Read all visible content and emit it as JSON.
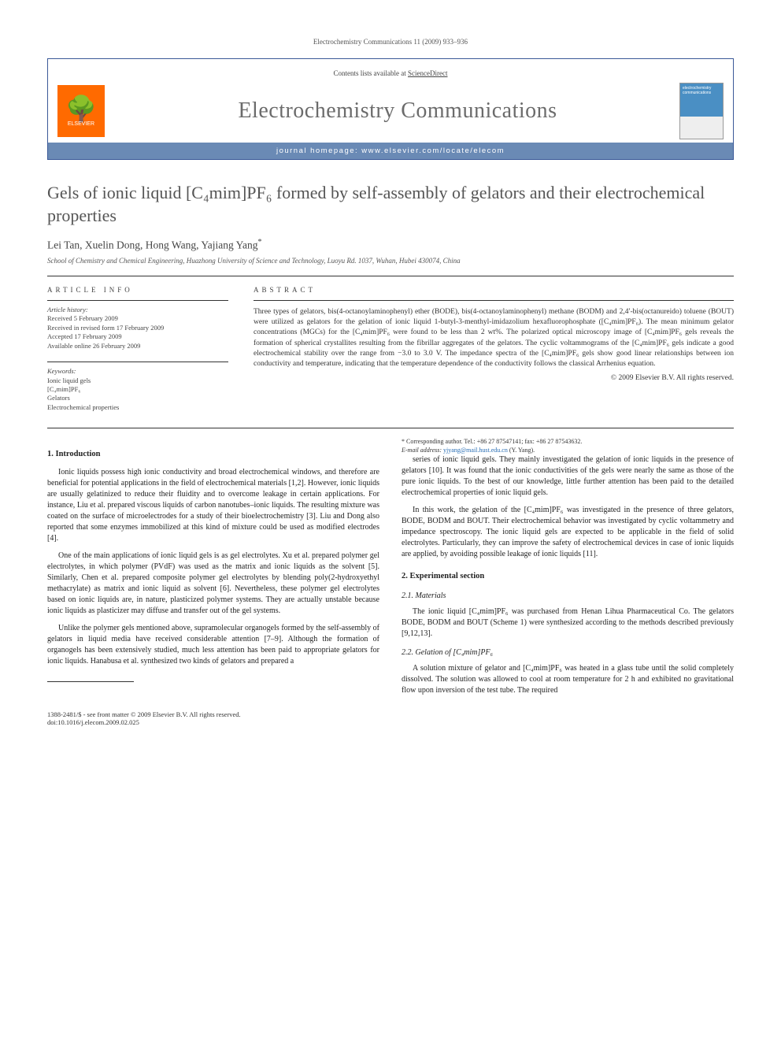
{
  "header_citation": "Electrochemistry Communications 11 (2009) 933–936",
  "banner": {
    "contents_line_prefix": "Contents lists available at ",
    "contents_link": "ScienceDirect",
    "journal_name": "Electrochemistry Communications",
    "homepage_label": "journal homepage: ",
    "homepage_url": "www.elsevier.com/locate/elecom",
    "publisher_logo_label": "ELSEVIER",
    "cover_text": "electrochemistry communications"
  },
  "title": "Gels of ionic liquid [C₄mim]PF₆ formed by self-assembly of gelators and their electrochemical properties",
  "authors": "Lei Tan, Xuelin Dong, Hong Wang, Yajiang Yang",
  "corr_mark": "*",
  "affiliation": "School of Chemistry and Chemical Engineering, Huazhong University of Science and Technology, Luoyu Rd. 1037, Wuhan, Hubei 430074, China",
  "article_info": {
    "heading": "ARTICLE INFO",
    "history_label": "Article history:",
    "received": "Received 5 February 2009",
    "revised": "Received in revised form 17 February 2009",
    "accepted": "Accepted 17 February 2009",
    "online": "Available online 26 February 2009",
    "keywords_label": "Keywords:",
    "keywords": [
      "Ionic liquid gels",
      "[C₄mim]PF₆",
      "Gelators",
      "Electrochemical properties"
    ]
  },
  "abstract": {
    "heading": "ABSTRACT",
    "text": "Three types of gelators, bis(4-octanoylaminophenyl) ether (BODE), bis(4-octanoylaminophenyl) methane (BODM) and 2,4′-bis(octanureido) toluene (BOUT) were utilized as gelators for the gelation of ionic liquid 1-butyl-3-menthyl-imidazolium hexafluorophosphate ([C₄mim]PF₆). The mean minimum gelator concentrations (MGCs) for the [C₄mim]PF₆ were found to be less than 2 wt%. The polarized optical microscopy image of [C₄mim]PF₆ gels reveals the formation of spherical crystallites resulting from the fibrillar aggregates of the gelators. The cyclic voltammograms of the [C₄mim]PF₆ gels indicate a good electrochemical stability over the range from −3.0 to 3.0 V. The impedance spectra of the [C₄mim]PF₆ gels show good linear relationships between ion conductivity and temperature, indicating that the temperature dependence of the conductivity follows the classical Arrhenius equation.",
    "copyright": "© 2009 Elsevier B.V. All rights reserved."
  },
  "sections": {
    "s1_title": "1. Introduction",
    "s1_p1": "Ionic liquids possess high ionic conductivity and broad electrochemical windows, and therefore are beneficial for potential applications in the field of electrochemical materials [1,2]. However, ionic liquids are usually gelatinized to reduce their fluidity and to overcome leakage in certain applications. For instance, Liu et al. prepared viscous liquids of carbon nanotubes–ionic liquids. The resulting mixture was coated on the surface of microelectrodes for a study of their bioelectrochemistry [3]. Liu and Dong also reported that some enzymes immobilized at this kind of mixture could be used as modified electrodes [4].",
    "s1_p2": "One of the main applications of ionic liquid gels is as gel electrolytes. Xu et al. prepared polymer gel electrolytes, in which polymer (PVdF) was used as the matrix and ionic liquids as the solvent [5]. Similarly, Chen et al. prepared composite polymer gel electrolytes by blending poly(2-hydroxyethyl methacrylate) as matrix and ionic liquid as solvent [6]. Nevertheless, these polymer gel electrolytes based on ionic liquids are, in nature, plasticized polymer systems. They are actually unstable because ionic liquids as plasticizer may diffuse and transfer out of the gel systems.",
    "s1_p3": "Unlike the polymer gels mentioned above, supramolecular organogels formed by the self-assembly of gelators in liquid media have received considerable attention [7–9]. Although the formation of organogels has been extensively studied, much less attention has been paid to appropriate gelators for ionic liquids. Hanabusa et al. synthesized two kinds of gelators and prepared a",
    "s1_p4": "series of ionic liquid gels. They mainly investigated the gelation of ionic liquids in the presence of gelators [10]. It was found that the ionic conductivities of the gels were nearly the same as those of the pure ionic liquids. To the best of our knowledge, little further attention has been paid to the detailed electrochemical properties of ionic liquid gels.",
    "s1_p5": "In this work, the gelation of the [C₄mim]PF₆ was investigated in the presence of three gelators, BODE, BODM and BOUT. Their electrochemical behavior was investigated by cyclic voltammetry and impedance spectroscopy. The ionic liquid gels are expected to be applicable in the field of solid electrolytes. Particularly, they can improve the safety of electrochemical devices in case of ionic liquids are applied, by avoiding possible leakage of ionic liquids [11].",
    "s2_title": "2. Experimental section",
    "s21_title": "2.1. Materials",
    "s21_p1": "The ionic liquid [C₄mim]PF₆ was purchased from Henan Lihua Pharmaceutical Co. The gelators BODE, BODM and BOUT (Scheme 1) were synthesized according to the methods described previously [9,12,13].",
    "s22_title": "2.2. Gelation of [C₄mim]PF₆",
    "s22_p1": "A solution mixture of gelator and [C₄mim]PF₆ was heated in a glass tube until the solid completely dissolved. The solution was allowed to cool at room temperature for 2 h and exhibited no gravitational flow upon inversion of the test tube. The required"
  },
  "footnote": {
    "corr_line": "* Corresponding author. Tel.: +86 27 87547141; fax: +86 27 87543632.",
    "email_label": "E-mail address:",
    "email": "yjyang@mail.hust.edu.cn",
    "email_suffix": "(Y. Yang)."
  },
  "footer": {
    "line1": "1388-2481/$ - see front matter © 2009 Elsevier B.V. All rights reserved.",
    "line2": "doi:10.1016/j.elecom.2009.02.025"
  }
}
